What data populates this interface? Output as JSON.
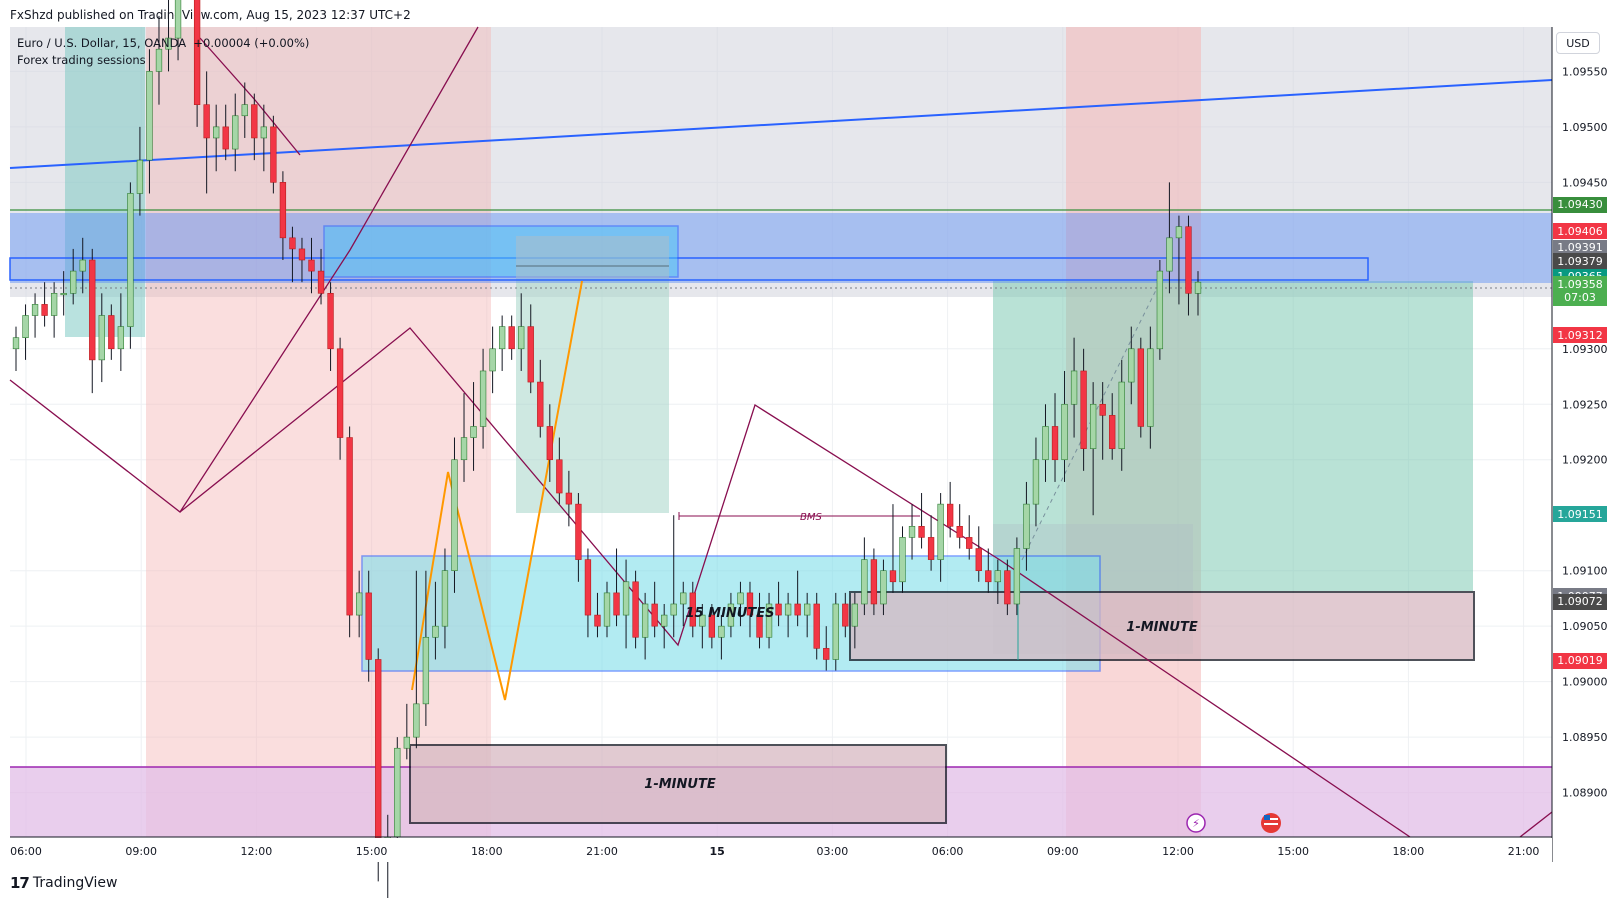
{
  "header": {
    "publisher": "FxShzd published on TradingView.com, Aug 15, 2023 12:37 UTC+2"
  },
  "legend": {
    "symbol_line": "Euro / U.S. Dollar, 15, OANDA",
    "change": "+0.00004 (+0.00%)",
    "indicator": "Forex trading sessions"
  },
  "toolbar": {
    "currency": "USD"
  },
  "footer": {
    "brand": "TradingView"
  },
  "chart_data": {
    "type": "candlestick",
    "symbol": "Euro / U.S. Dollar",
    "interval": "15",
    "exchange": "OANDA",
    "y_ticks": [
      "1.09550",
      "1.09500",
      "1.09450",
      "1.09300",
      "1.09250",
      "1.09200",
      "1.09100",
      "1.09050",
      "1.09000",
      "1.08950",
      "1.08900"
    ],
    "x_ticks": [
      "06:00",
      "09:00",
      "12:00",
      "15:00",
      "18:00",
      "21:00",
      "15",
      "03:00",
      "06:00",
      "09:00",
      "12:00",
      "15:00",
      "18:00",
      "21:00"
    ],
    "ylim": [
      1.0886,
      1.0959
    ],
    "price_labels": [
      {
        "value": "1.09430",
        "color": "#388e3c"
      },
      {
        "value": "1.09406",
        "color": "#f23645"
      },
      {
        "value": "1.09391",
        "color": "#787b86"
      },
      {
        "value": "1.09379",
        "color": "#4a4a4a"
      },
      {
        "value": "1.09365",
        "color": "#089981"
      },
      {
        "value": "1.09358",
        "color": "#4caf50",
        "extra": "07:03"
      },
      {
        "value": "1.09312",
        "color": "#f23645"
      },
      {
        "value": "1.09151",
        "color": "#26a69a"
      },
      {
        "value": "1.09077",
        "color": "#787b86"
      },
      {
        "value": "1.09072",
        "color": "#4a4a4a"
      },
      {
        "value": "1.09019",
        "color": "#f23645"
      }
    ],
    "annotations": [
      {
        "text": "BMS"
      },
      {
        "text": "15 MINUTES"
      },
      {
        "text": "1-MINUTE"
      },
      {
        "text": "1-MINUTE"
      }
    ],
    "colors": {
      "up": "#a5d6a7",
      "down": "#f23645",
      "blue_zone": "#2962ff",
      "purple_line": "#880e4f",
      "orange_line": "#ff9800"
    },
    "candles": [
      {
        "o": 1.093,
        "h": 1.0932,
        "l": 1.0928,
        "c": 1.0931
      },
      {
        "o": 1.0931,
        "h": 1.0934,
        "l": 1.0929,
        "c": 1.0933
      },
      {
        "o": 1.0933,
        "h": 1.0935,
        "l": 1.0931,
        "c": 1.0934
      },
      {
        "o": 1.0934,
        "h": 1.0936,
        "l": 1.0932,
        "c": 1.0933
      },
      {
        "o": 1.0933,
        "h": 1.0936,
        "l": 1.0931,
        "c": 1.0935
      },
      {
        "o": 1.0935,
        "h": 1.0937,
        "l": 1.0933,
        "c": 1.0935
      },
      {
        "o": 1.0935,
        "h": 1.0939,
        "l": 1.0934,
        "c": 1.0937
      },
      {
        "o": 1.0937,
        "h": 1.094,
        "l": 1.0935,
        "c": 1.0938
      },
      {
        "o": 1.0938,
        "h": 1.0939,
        "l": 1.0926,
        "c": 1.0929
      },
      {
        "o": 1.0929,
        "h": 1.0935,
        "l": 1.0927,
        "c": 1.0933
      },
      {
        "o": 1.0933,
        "h": 1.0934,
        "l": 1.0929,
        "c": 1.093
      },
      {
        "o": 1.093,
        "h": 1.0935,
        "l": 1.0928,
        "c": 1.0932
      },
      {
        "o": 1.0932,
        "h": 1.0945,
        "l": 1.093,
        "c": 1.0944
      },
      {
        "o": 1.0944,
        "h": 1.095,
        "l": 1.0942,
        "c": 1.0947
      },
      {
        "o": 1.0947,
        "h": 1.0957,
        "l": 1.0944,
        "c": 1.0955
      },
      {
        "o": 1.0955,
        "h": 1.096,
        "l": 1.0952,
        "c": 1.0957
      },
      {
        "o": 1.0957,
        "h": 1.0962,
        "l": 1.0955,
        "c": 1.0958
      },
      {
        "o": 1.0958,
        "h": 1.0966,
        "l": 1.0956,
        "c": 1.0964
      },
      {
        "o": 1.0964,
        "h": 1.0968,
        "l": 1.0962,
        "c": 1.0965
      },
      {
        "o": 1.0965,
        "h": 1.0967,
        "l": 1.095,
        "c": 1.0952
      },
      {
        "o": 1.0952,
        "h": 1.0955,
        "l": 1.0944,
        "c": 1.0949
      },
      {
        "o": 1.0949,
        "h": 1.0952,
        "l": 1.0946,
        "c": 1.095
      },
      {
        "o": 1.095,
        "h": 1.0952,
        "l": 1.0947,
        "c": 1.0948
      },
      {
        "o": 1.0948,
        "h": 1.0953,
        "l": 1.0946,
        "c": 1.0951
      },
      {
        "o": 1.0951,
        "h": 1.0954,
        "l": 1.0949,
        "c": 1.0952
      },
      {
        "o": 1.0952,
        "h": 1.0953,
        "l": 1.0947,
        "c": 1.0949
      },
      {
        "o": 1.0949,
        "h": 1.0952,
        "l": 1.0946,
        "c": 1.095
      },
      {
        "o": 1.095,
        "h": 1.0951,
        "l": 1.0944,
        "c": 1.0945
      },
      {
        "o": 1.0945,
        "h": 1.0946,
        "l": 1.0938,
        "c": 1.094
      },
      {
        "o": 1.094,
        "h": 1.0941,
        "l": 1.0936,
        "c": 1.0939
      },
      {
        "o": 1.0939,
        "h": 1.094,
        "l": 1.0936,
        "c": 1.0938
      },
      {
        "o": 1.0938,
        "h": 1.094,
        "l": 1.0935,
        "c": 1.0937
      },
      {
        "o": 1.0937,
        "h": 1.0939,
        "l": 1.0934,
        "c": 1.0935
      },
      {
        "o": 1.0935,
        "h": 1.0936,
        "l": 1.0928,
        "c": 1.093
      },
      {
        "o": 1.093,
        "h": 1.0931,
        "l": 1.092,
        "c": 1.0922
      },
      {
        "o": 1.0922,
        "h": 1.0923,
        "l": 1.0904,
        "c": 1.0906
      },
      {
        "o": 1.0906,
        "h": 1.091,
        "l": 1.0904,
        "c": 1.0908
      },
      {
        "o": 1.0908,
        "h": 1.091,
        "l": 1.09,
        "c": 1.0902
      },
      {
        "o": 1.0902,
        "h": 1.0903,
        "l": 1.0882,
        "c": 1.0884
      },
      {
        "o": 1.0884,
        "h": 1.0888,
        "l": 1.088,
        "c": 1.0886
      },
      {
        "o": 1.0886,
        "h": 1.0895,
        "l": 1.0884,
        "c": 1.0894
      },
      {
        "o": 1.0894,
        "h": 1.0898,
        "l": 1.0893,
        "c": 1.0895
      },
      {
        "o": 1.0895,
        "h": 1.091,
        "l": 1.0894,
        "c": 1.0898
      },
      {
        "o": 1.0898,
        "h": 1.091,
        "l": 1.0896,
        "c": 1.0904
      },
      {
        "o": 1.0904,
        "h": 1.0909,
        "l": 1.0902,
        "c": 1.0905
      },
      {
        "o": 1.0905,
        "h": 1.0912,
        "l": 1.0903,
        "c": 1.091
      },
      {
        "o": 1.091,
        "h": 1.0922,
        "l": 1.0908,
        "c": 1.092
      },
      {
        "o": 1.092,
        "h": 1.0926,
        "l": 1.0918,
        "c": 1.0922
      },
      {
        "o": 1.0922,
        "h": 1.0927,
        "l": 1.0919,
        "c": 1.0923
      },
      {
        "o": 1.0923,
        "h": 1.093,
        "l": 1.0921,
        "c": 1.0928
      },
      {
        "o": 1.0928,
        "h": 1.0932,
        "l": 1.0926,
        "c": 1.093
      },
      {
        "o": 1.093,
        "h": 1.0933,
        "l": 1.0928,
        "c": 1.0932
      },
      {
        "o": 1.0932,
        "h": 1.0933,
        "l": 1.0929,
        "c": 1.093
      },
      {
        "o": 1.093,
        "h": 1.0935,
        "l": 1.0928,
        "c": 1.0932
      },
      {
        "o": 1.0932,
        "h": 1.0934,
        "l": 1.0926,
        "c": 1.0927
      },
      {
        "o": 1.0927,
        "h": 1.0929,
        "l": 1.0922,
        "c": 1.0923
      },
      {
        "o": 1.0923,
        "h": 1.0925,
        "l": 1.0918,
        "c": 1.092
      },
      {
        "o": 1.092,
        "h": 1.0922,
        "l": 1.0916,
        "c": 1.0917
      },
      {
        "o": 1.0917,
        "h": 1.0919,
        "l": 1.0914,
        "c": 1.0916
      },
      {
        "o": 1.0916,
        "h": 1.0917,
        "l": 1.0909,
        "c": 1.0911
      },
      {
        "o": 1.0911,
        "h": 1.0912,
        "l": 1.0904,
        "c": 1.0906
      },
      {
        "o": 1.0906,
        "h": 1.0908,
        "l": 1.0904,
        "c": 1.0905
      },
      {
        "o": 1.0905,
        "h": 1.0909,
        "l": 1.0904,
        "c": 1.0908
      },
      {
        "o": 1.0908,
        "h": 1.0912,
        "l": 1.0905,
        "c": 1.0906
      },
      {
        "o": 1.0906,
        "h": 1.0911,
        "l": 1.0903,
        "c": 1.0909
      },
      {
        "o": 1.0909,
        "h": 1.091,
        "l": 1.0903,
        "c": 1.0904
      },
      {
        "o": 1.0904,
        "h": 1.0908,
        "l": 1.0902,
        "c": 1.0907
      },
      {
        "o": 1.0907,
        "h": 1.0909,
        "l": 1.0904,
        "c": 1.0905
      },
      {
        "o": 1.0905,
        "h": 1.0907,
        "l": 1.0903,
        "c": 1.0906
      },
      {
        "o": 1.0906,
        "h": 1.0915,
        "l": 1.0904,
        "c": 1.0907
      },
      {
        "o": 1.0907,
        "h": 1.0909,
        "l": 1.0905,
        "c": 1.0908
      },
      {
        "o": 1.0908,
        "h": 1.0909,
        "l": 1.0904,
        "c": 1.0905
      },
      {
        "o": 1.0905,
        "h": 1.0907,
        "l": 1.0903,
        "c": 1.0906
      },
      {
        "o": 1.0906,
        "h": 1.0907,
        "l": 1.0903,
        "c": 1.0904
      },
      {
        "o": 1.0904,
        "h": 1.0906,
        "l": 1.0902,
        "c": 1.0905
      },
      {
        "o": 1.0905,
        "h": 1.0908,
        "l": 1.0904,
        "c": 1.0907
      },
      {
        "o": 1.0907,
        "h": 1.0909,
        "l": 1.0905,
        "c": 1.0908
      },
      {
        "o": 1.0908,
        "h": 1.0909,
        "l": 1.0904,
        "c": 1.0906
      },
      {
        "o": 1.0906,
        "h": 1.0908,
        "l": 1.0903,
        "c": 1.0904
      },
      {
        "o": 1.0904,
        "h": 1.0908,
        "l": 1.0903,
        "c": 1.0907
      },
      {
        "o": 1.0907,
        "h": 1.0909,
        "l": 1.0905,
        "c": 1.0906
      },
      {
        "o": 1.0906,
        "h": 1.0908,
        "l": 1.0904,
        "c": 1.0907
      },
      {
        "o": 1.0907,
        "h": 1.091,
        "l": 1.0905,
        "c": 1.0906
      },
      {
        "o": 1.0906,
        "h": 1.0908,
        "l": 1.0904,
        "c": 1.0907
      },
      {
        "o": 1.0907,
        "h": 1.0908,
        "l": 1.0902,
        "c": 1.0903
      },
      {
        "o": 1.0903,
        "h": 1.0905,
        "l": 1.0901,
        "c": 1.0902
      },
      {
        "o": 1.0902,
        "h": 1.0908,
        "l": 1.0901,
        "c": 1.0907
      },
      {
        "o": 1.0907,
        "h": 1.0908,
        "l": 1.0904,
        "c": 1.0905
      },
      {
        "o": 1.0905,
        "h": 1.0908,
        "l": 1.0903,
        "c": 1.0907
      },
      {
        "o": 1.0907,
        "h": 1.0913,
        "l": 1.0906,
        "c": 1.0911
      },
      {
        "o": 1.0911,
        "h": 1.0912,
        "l": 1.0906,
        "c": 1.0907
      },
      {
        "o": 1.0907,
        "h": 1.0911,
        "l": 1.0906,
        "c": 1.091
      },
      {
        "o": 1.091,
        "h": 1.0916,
        "l": 1.0908,
        "c": 1.0909
      },
      {
        "o": 1.0909,
        "h": 1.0914,
        "l": 1.0908,
        "c": 1.0913
      },
      {
        "o": 1.0913,
        "h": 1.0916,
        "l": 1.0911,
        "c": 1.0914
      },
      {
        "o": 1.0914,
        "h": 1.0917,
        "l": 1.0912,
        "c": 1.0913
      },
      {
        "o": 1.0913,
        "h": 1.0915,
        "l": 1.091,
        "c": 1.0911
      },
      {
        "o": 1.0911,
        "h": 1.0917,
        "l": 1.0909,
        "c": 1.0916
      },
      {
        "o": 1.0916,
        "h": 1.0918,
        "l": 1.0913,
        "c": 1.0914
      },
      {
        "o": 1.0914,
        "h": 1.0916,
        "l": 1.0912,
        "c": 1.0913
      },
      {
        "o": 1.0913,
        "h": 1.0915,
        "l": 1.0911,
        "c": 1.0912
      },
      {
        "o": 1.0912,
        "h": 1.0914,
        "l": 1.0909,
        "c": 1.091
      },
      {
        "o": 1.091,
        "h": 1.0912,
        "l": 1.0908,
        "c": 1.0909
      },
      {
        "o": 1.0909,
        "h": 1.0911,
        "l": 1.0907,
        "c": 1.091
      },
      {
        "o": 1.091,
        "h": 1.0911,
        "l": 1.0906,
        "c": 1.0907
      },
      {
        "o": 1.0907,
        "h": 1.0913,
        "l": 1.0906,
        "c": 1.0912
      },
      {
        "o": 1.0912,
        "h": 1.0918,
        "l": 1.091,
        "c": 1.0916
      },
      {
        "o": 1.0916,
        "h": 1.0922,
        "l": 1.0914,
        "c": 1.092
      },
      {
        "o": 1.092,
        "h": 1.0925,
        "l": 1.0918,
        "c": 1.0923
      },
      {
        "o": 1.0923,
        "h": 1.0926,
        "l": 1.0918,
        "c": 1.092
      },
      {
        "o": 1.092,
        "h": 1.0928,
        "l": 1.0918,
        "c": 1.0925
      },
      {
        "o": 1.0925,
        "h": 1.0931,
        "l": 1.0922,
        "c": 1.0928
      },
      {
        "o": 1.0928,
        "h": 1.093,
        "l": 1.0919,
        "c": 1.0921
      },
      {
        "o": 1.0921,
        "h": 1.0927,
        "l": 1.0915,
        "c": 1.0925
      },
      {
        "o": 1.0925,
        "h": 1.0927,
        "l": 1.092,
        "c": 1.0924
      },
      {
        "o": 1.0924,
        "h": 1.0926,
        "l": 1.092,
        "c": 1.0921
      },
      {
        "o": 1.0921,
        "h": 1.0929,
        "l": 1.0919,
        "c": 1.0927
      },
      {
        "o": 1.0927,
        "h": 1.0932,
        "l": 1.0925,
        "c": 1.093
      },
      {
        "o": 1.093,
        "h": 1.0931,
        "l": 1.0922,
        "c": 1.0923
      },
      {
        "o": 1.0923,
        "h": 1.0932,
        "l": 1.0921,
        "c": 1.093
      },
      {
        "o": 1.093,
        "h": 1.0938,
        "l": 1.0929,
        "c": 1.0937
      },
      {
        "o": 1.0937,
        "h": 1.0945,
        "l": 1.0935,
        "c": 1.094
      },
      {
        "o": 1.094,
        "h": 1.0942,
        "l": 1.0934,
        "c": 1.0941
      },
      {
        "o": 1.0941,
        "h": 1.0942,
        "l": 1.0933,
        "c": 1.0935
      },
      {
        "o": 1.0935,
        "h": 1.0937,
        "l": 1.0933,
        "c": 1.0936
      }
    ]
  }
}
